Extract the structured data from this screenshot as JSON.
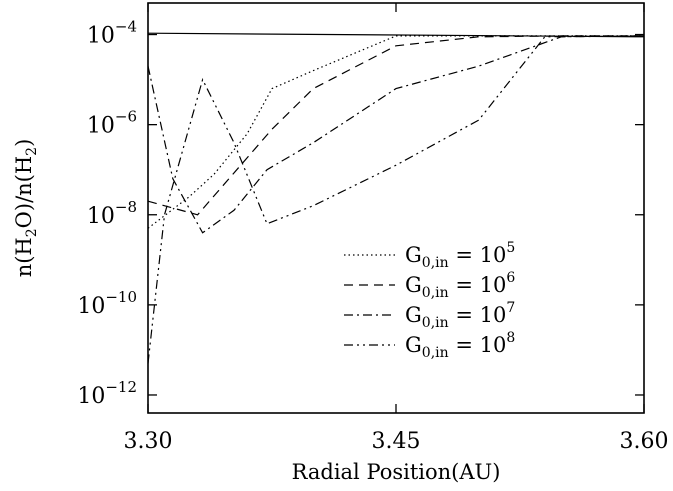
{
  "chart_data": {
    "type": "line",
    "title": "",
    "xlabel": "Radial Position(AU)",
    "ylabel": {
      "prefix": "n(H",
      "sub1": "2",
      "middle": "O)/n(H",
      "sub2": "2",
      "suffix": ")"
    },
    "xlim": [
      3.3,
      3.6
    ],
    "ylim_log10": [
      -12.4,
      -3.3
    ],
    "y_scale": "log",
    "x_ticks": [
      3.3,
      3.45,
      3.6
    ],
    "x_tick_labels": [
      "3.30",
      "3.45",
      "3.60"
    ],
    "y_ticks_log10": [
      -12,
      -10,
      -8,
      -6,
      -4
    ],
    "y_tick_labels": [
      {
        "base": "10",
        "exp": "−12"
      },
      {
        "base": "10",
        "exp": "−10"
      },
      {
        "base": "10",
        "exp": "−8"
      },
      {
        "base": "10",
        "exp": "−6"
      },
      {
        "base": "10",
        "exp": "−4"
      }
    ],
    "grid": false,
    "legend_position": "center-right",
    "series": [
      {
        "style": "solid",
        "x": [
          3.3,
          3.6
        ],
        "log10_y": [
          -3.97,
          -4.05
        ]
      },
      {
        "label": {
          "base": "G",
          "sub": "0,in",
          "eq": " = ",
          "num": "10",
          "exp": "5"
        },
        "style": "dotted",
        "x": [
          3.3,
          3.325,
          3.34,
          3.36,
          3.375,
          3.4,
          3.45,
          3.5,
          3.55,
          3.6
        ],
        "log10_y": [
          -8.3,
          -7.6,
          -7.1,
          -6.2,
          -5.2,
          -4.8,
          -4.03,
          -4.03,
          -4.03,
          -4.03
        ]
      },
      {
        "label": {
          "base": "G",
          "sub": "0,in",
          "eq": " = ",
          "num": "10",
          "exp": "6"
        },
        "style": "dashed",
        "x": [
          3.3,
          3.33,
          3.375,
          3.4,
          3.45,
          3.5,
          3.55,
          3.6
        ],
        "log10_y": [
          -7.7,
          -8.0,
          -6.1,
          -5.2,
          -4.25,
          -4.05,
          -4.03,
          -4.03
        ]
      },
      {
        "label": {
          "base": "G",
          "sub": "0,in",
          "eq": " = ",
          "num": "10",
          "exp": "7"
        },
        "style": "dashdot",
        "x": [
          3.3,
          3.315,
          3.333,
          3.352,
          3.372,
          3.4,
          3.45,
          3.5,
          3.55,
          3.6
        ],
        "log10_y": [
          -4.7,
          -7.2,
          -8.4,
          -7.9,
          -7.0,
          -6.4,
          -5.2,
          -4.7,
          -4.05,
          -4.03
        ]
      },
      {
        "label": {
          "base": "G",
          "sub": "0,in",
          "eq": " = ",
          "num": "10",
          "exp": "8"
        },
        "style": "dashdotdot",
        "x": [
          3.3,
          3.31,
          3.333,
          3.352,
          3.372,
          3.4,
          3.45,
          3.5,
          3.54,
          3.6
        ],
        "log10_y": [
          -11.3,
          -8.0,
          -5.0,
          -6.4,
          -8.2,
          -7.8,
          -6.9,
          -5.9,
          -4.05,
          -4.03
        ]
      }
    ]
  }
}
